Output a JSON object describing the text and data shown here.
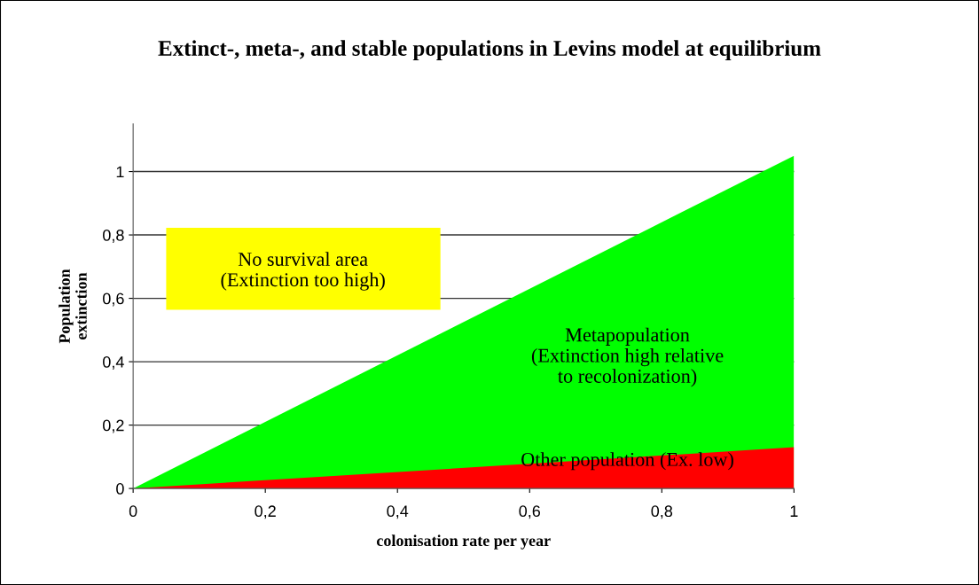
{
  "chart_data": {
    "type": "area",
    "title": "Extinct-, meta-, and stable populations in Levins model at equilibrium",
    "xlabel": "colonisation rate per year",
    "ylabel": "Population\nextinction",
    "x": [
      0,
      1
    ],
    "series": [
      {
        "color": "#00ff00",
        "values": [
          0,
          1.05
        ]
      },
      {
        "color": "#ff0000",
        "values": [
          0,
          0.13
        ]
      }
    ],
    "xlim": [
      0,
      1
    ],
    "ylim": [
      0,
      1.15
    ],
    "xticks": [
      0,
      {
        "value": 0.2,
        "label": "0,2"
      },
      {
        "value": 0.4,
        "label": "0,4"
      },
      {
        "value": 0.6,
        "label": "0,6"
      },
      {
        "value": 0.8,
        "label": "0,8"
      },
      1
    ],
    "yticks": [
      0,
      {
        "value": 0.2,
        "label": "0,2"
      },
      {
        "value": 0.4,
        "label": "0,4"
      },
      {
        "value": 0.6,
        "label": "0,6"
      },
      {
        "value": 0.8,
        "label": "0,8"
      },
      1
    ],
    "grid": "y",
    "legend": false,
    "annotations": [
      "No survival area\n(Extinction too high)",
      "Metapopulation\n(Extinction high relative\nto recolonization)",
      "Other population (Ex. low)"
    ]
  }
}
